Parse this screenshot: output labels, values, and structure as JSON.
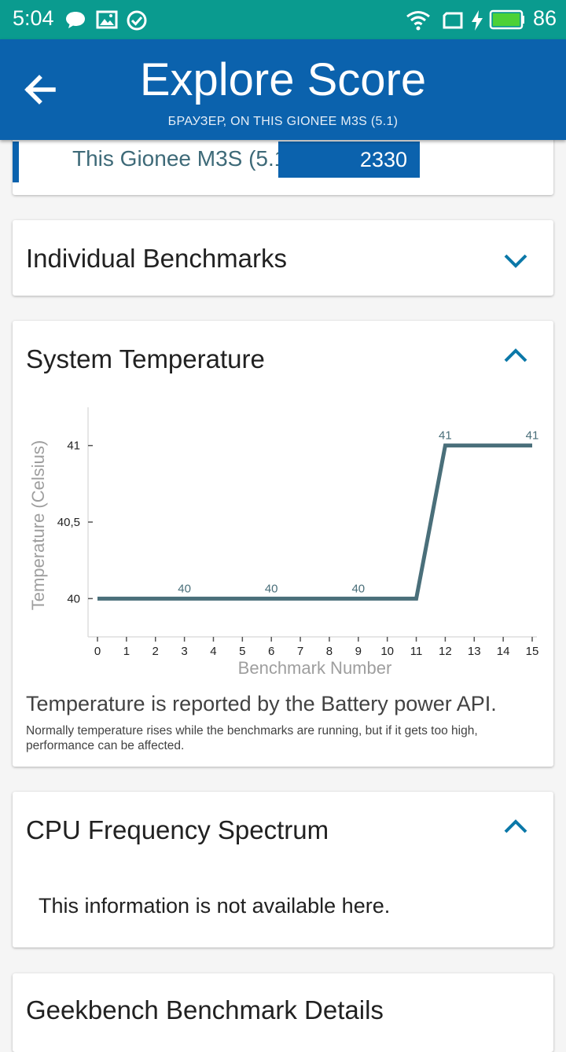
{
  "status_bar": {
    "time": "5:04",
    "battery_pct": "86",
    "icons": [
      "message-icon",
      "image-icon",
      "check-circle-icon",
      "wifi-icon",
      "screen-rotate-icon",
      "charging-icon",
      "battery-icon"
    ]
  },
  "app_bar": {
    "title": "Explore Score",
    "subtitle": "БРАУЗЕР, ON THIS GIONEE M3S (5.1)",
    "color": "#0b62ad"
  },
  "score_card": {
    "device_label": "This Gionee M3S (5.1)",
    "score": "2330"
  },
  "benchmarks_card": {
    "title": "Individual Benchmarks"
  },
  "temperature_card": {
    "title": "System Temperature",
    "note": "Temperature is reported by the Battery power API.",
    "subnote": "Normally temperature rises while the benchmarks are running, but if it gets too high, performance can be affected."
  },
  "cpu_card": {
    "title": "CPU Frequency Spectrum",
    "message": "This information is not available here."
  },
  "next_card": {
    "title": "Geekbench Benchmark Details"
  },
  "chart_data": {
    "type": "line",
    "xlabel": "Benchmark Number",
    "ylabel": "Temperature (Celsius)",
    "x": [
      0,
      1,
      2,
      3,
      4,
      5,
      6,
      7,
      8,
      9,
      10,
      11,
      12,
      13,
      14,
      15
    ],
    "y": [
      40,
      40,
      40,
      40,
      40,
      40,
      40,
      40,
      40,
      40,
      40,
      40,
      41,
      41,
      41,
      41
    ],
    "xticks": [
      "0",
      "1",
      "2",
      "3",
      "4",
      "5",
      "6",
      "7",
      "8",
      "9",
      "10",
      "11",
      "12",
      "13",
      "14",
      "15"
    ],
    "yticks": [
      {
        "value": 40,
        "label": "40"
      },
      {
        "value": 40.5,
        "label": "40,5"
      },
      {
        "value": 41,
        "label": "41"
      }
    ],
    "point_labels": [
      {
        "x": 3,
        "y": 40,
        "text": "40"
      },
      {
        "x": 6,
        "y": 40,
        "text": "40"
      },
      {
        "x": 9,
        "y": 40,
        "text": "40"
      },
      {
        "x": 12,
        "y": 41,
        "text": "41"
      },
      {
        "x": 15,
        "y": 41,
        "text": "41"
      }
    ],
    "xlim": [
      0,
      15
    ],
    "ylim": [
      39.75,
      41.25
    ],
    "line_color": "#4a6f7a",
    "grid": false
  }
}
